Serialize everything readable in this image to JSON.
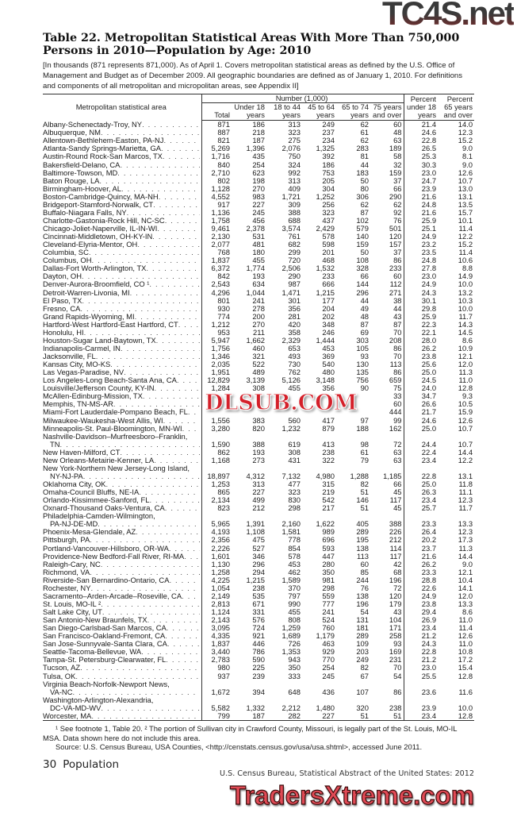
{
  "title": "Table 22. Metropolitan Statistical Areas With More Than 750,000 Persons in 2010—Population by Age: 2010",
  "headnote": "[In thousands (871 represents 871,000). As of April 1. Covers metropolitan statistical areas as defined by the U.S. Office of Management and Budget as of December 2009. All geographic boundaries are defined as of January 1, 2010. For definitions and components of all metropolitan and micropolitan areas, see Appendix II]",
  "header": {
    "stub": "Metropolitan statistical area",
    "group": "Number (1,000)",
    "cols": [
      [
        "",
        "",
        "Total"
      ],
      [
        "",
        "Under 18",
        "years"
      ],
      [
        "",
        "18 to 44",
        "years"
      ],
      [
        "",
        "45 to 64",
        "years"
      ],
      [
        "",
        "65 to 74",
        "years"
      ],
      [
        "",
        "75 years",
        "and over"
      ],
      [
        "Percent",
        "under 18",
        "years"
      ],
      [
        "Percent",
        "65 years",
        "and over"
      ]
    ]
  },
  "rows": [
    {
      "name": [
        "Albany-Schenectady-Troy, NY"
      ],
      "v": [
        "871",
        "186",
        "313",
        "249",
        "62",
        "60",
        "21.4",
        "14.0"
      ]
    },
    {
      "name": [
        "Albuquerque, NM"
      ],
      "v": [
        "887",
        "218",
        "323",
        "237",
        "61",
        "48",
        "24.6",
        "12.3"
      ]
    },
    {
      "name": [
        "Allentown-Bethlehem-Easton, PA-NJ"
      ],
      "v": [
        "821",
        "187",
        "275",
        "234",
        "62",
        "63",
        "22.8",
        "15.2"
      ]
    },
    {
      "name": [
        "Atlanta-Sandy Springs-Marietta, GA"
      ],
      "v": [
        "5,269",
        "1,396",
        "2,076",
        "1,325",
        "283",
        "189",
        "26.5",
        "9.0"
      ]
    },
    {
      "name": [
        "Austin-Round Rock-San Marcos, TX"
      ],
      "v": [
        "1,716",
        "435",
        "750",
        "392",
        "81",
        "58",
        "25.3",
        "8.1"
      ]
    },
    {
      "name": [
        "Bakersfield-Delano, CA"
      ],
      "v": [
        "840",
        "254",
        "324",
        "186",
        "44",
        "32",
        "30.3",
        "9.0"
      ]
    },
    {
      "name": [
        "Baltimore-Towson, MD"
      ],
      "v": [
        "2,710",
        "623",
        "992",
        "753",
        "183",
        "159",
        "23.0",
        "12.6"
      ]
    },
    {
      "name": [
        "Baton Rouge, LA"
      ],
      "v": [
        "802",
        "198",
        "313",
        "205",
        "50",
        "37",
        "24.7",
        "10.7"
      ]
    },
    {
      "name": [
        "Birmingham-Hoover, AL"
      ],
      "v": [
        "1,128",
        "270",
        "409",
        "304",
        "80",
        "66",
        "23.9",
        "13.0"
      ]
    },
    {
      "name": [
        "Boston-Cambridge-Quincy, MA-NH"
      ],
      "v": [
        "4,552",
        "983",
        "1,721",
        "1,252",
        "306",
        "290",
        "21.6",
        "13.1"
      ]
    },
    {
      "name": [
        "Bridgeport-Stamford-Norwalk, CT"
      ],
      "v": [
        "917",
        "227",
        "309",
        "256",
        "62",
        "62",
        "24.8",
        "13.5"
      ]
    },
    {
      "name": [
        "Buffalo-Niagara Falls, NY"
      ],
      "v": [
        "1,136",
        "245",
        "388",
        "323",
        "87",
        "92",
        "21.6",
        "15.7"
      ]
    },
    {
      "name": [
        "Charlotte-Gastonia-Rock Hill, NC-SC"
      ],
      "v": [
        "1,758",
        "456",
        "688",
        "437",
        "102",
        "76",
        "25.9",
        "10.1"
      ]
    },
    {
      "name": [
        "Chicago-Joliet-Naperville, IL-IN-WI"
      ],
      "v": [
        "9,461",
        "2,378",
        "3,574",
        "2,429",
        "579",
        "501",
        "25.1",
        "11.4"
      ]
    },
    {
      "name": [
        "Cincinnati-Middletown, OH-KY-IN"
      ],
      "v": [
        "2,130",
        "531",
        "761",
        "578",
        "140",
        "120",
        "24.9",
        "12.2"
      ]
    },
    {
      "name": [
        "Cleveland-Elyria-Mentor, OH"
      ],
      "v": [
        "2,077",
        "481",
        "682",
        "598",
        "159",
        "157",
        "23.2",
        "15.2"
      ]
    },
    {
      "name": [
        "Columbia, SC"
      ],
      "v": [
        "768",
        "180",
        "299",
        "201",
        "50",
        "37",
        "23.5",
        "11.4"
      ]
    },
    {
      "name": [
        "Columbus, OH"
      ],
      "v": [
        "1,837",
        "455",
        "720",
        "468",
        "108",
        "86",
        "24.8",
        "10.6"
      ]
    },
    {
      "name": [
        "Dallas-Fort Worth-Arlington, TX"
      ],
      "v": [
        "6,372",
        "1,774",
        "2,506",
        "1,532",
        "328",
        "233",
        "27.8",
        "8.8"
      ]
    },
    {
      "name": [
        "Dayton, OH"
      ],
      "v": [
        "842",
        "193",
        "290",
        "233",
        "66",
        "60",
        "23.0",
        "14.9"
      ]
    },
    {
      "name": [
        "Denver-Aurora-Broomfield, CO ¹"
      ],
      "v": [
        "2,543",
        "634",
        "987",
        "666",
        "144",
        "112",
        "24.9",
        "10.0"
      ]
    },
    {
      "name": [
        "Detroit-Warren-Livonia, MI"
      ],
      "v": [
        "4,296",
        "1,044",
        "1,471",
        "1,215",
        "296",
        "271",
        "24.3",
        "13.2"
      ]
    },
    {
      "name": [
        "El Paso, TX"
      ],
      "v": [
        "801",
        "241",
        "301",
        "177",
        "44",
        "38",
        "30.1",
        "10.3"
      ]
    },
    {
      "name": [
        "Fresno, CA"
      ],
      "v": [
        "930",
        "278",
        "356",
        "204",
        "49",
        "44",
        "29.8",
        "10.0"
      ]
    },
    {
      "name": [
        "Grand Rapids-Wyoming, MI"
      ],
      "v": [
        "774",
        "200",
        "281",
        "202",
        "48",
        "43",
        "25.9",
        "11.7"
      ]
    },
    {
      "name": [
        "Hartford-West Hartford-East Hartford, CT"
      ],
      "v": [
        "1,212",
        "270",
        "420",
        "348",
        "87",
        "87",
        "22.3",
        "14.3"
      ]
    },
    {
      "name": [
        "Honolulu, HI"
      ],
      "v": [
        "953",
        "211",
        "358",
        "246",
        "69",
        "70",
        "22.1",
        "14.5"
      ]
    },
    {
      "name": [
        "Houston-Sugar Land-Baytown, TX"
      ],
      "v": [
        "5,947",
        "1,662",
        "2,329",
        "1,444",
        "303",
        "208",
        "28.0",
        "8.6"
      ]
    },
    {
      "name": [
        "Indianapolis-Carmel, IN"
      ],
      "v": [
        "1,756",
        "460",
        "653",
        "453",
        "105",
        "86",
        "26.2",
        "10.9"
      ]
    },
    {
      "name": [
        "Jacksonville, FL"
      ],
      "v": [
        "1,346",
        "321",
        "493",
        "369",
        "93",
        "70",
        "23.8",
        "12.1"
      ]
    },
    {
      "name": [
        "Kansas City, MO-KS"
      ],
      "v": [
        "2,035",
        "522",
        "730",
        "540",
        "130",
        "113",
        "25.6",
        "12.0"
      ]
    },
    {
      "name": [
        "Las Vegas-Paradise, NV"
      ],
      "v": [
        "1,951",
        "489",
        "762",
        "480",
        "135",
        "86",
        "25.0",
        "11.3"
      ]
    },
    {
      "name": [
        "Los Angeles-Long Beach-Santa Ana, CA"
      ],
      "v": [
        "12,829",
        "3,139",
        "5,126",
        "3,148",
        "756",
        "659",
        "24.5",
        "11.0"
      ]
    },
    {
      "name": [
        "Louisville/Jefferson County, KY-IN"
      ],
      "v": [
        "1,284",
        "308",
        "455",
        "356",
        "90",
        "75",
        "24.0",
        "12.8"
      ]
    },
    {
      "name": [
        "McAllen-Edinburg-Mission, TX"
      ],
      "v": [
        "",
        "",
        "",
        "",
        "",
        "33",
        "34.7",
        "9.3"
      ]
    },
    {
      "name": [
        "Memphis, TN-MS-AR"
      ],
      "v": [
        "",
        "",
        "",
        "",
        "",
        "60",
        "26.6",
        "10.5"
      ]
    },
    {
      "name": [
        "Miami-Fort Lauderdale-Pompano Beach, FL"
      ],
      "v": [
        "",
        "",
        "",
        "",
        "",
        "444",
        "21.7",
        "15.9"
      ]
    },
    {
      "name": [
        "Milwaukee-Waukesha-West Allis, WI"
      ],
      "v": [
        "1,556",
        "383",
        "560",
        "417",
        "97",
        "99",
        "24.6",
        "12.6"
      ]
    },
    {
      "name": [
        "Minneapolis-St. Paul-Bloomington, MN-WI"
      ],
      "v": [
        "3,280",
        "820",
        "1,232",
        "879",
        "188",
        "162",
        "25.0",
        "10.7"
      ]
    },
    {
      "name": [
        "Nashville-Davidson–Murfreesboro–Franklin,",
        "TN"
      ],
      "v": [
        "1,590",
        "388",
        "619",
        "413",
        "98",
        "72",
        "24.4",
        "10.7"
      ]
    },
    {
      "name": [
        "New Haven-Milford, CT"
      ],
      "v": [
        "862",
        "193",
        "308",
        "238",
        "61",
        "63",
        "22.4",
        "14.4"
      ]
    },
    {
      "name": [
        "New Orleans-Metairie-Kenner, LA"
      ],
      "v": [
        "1,168",
        "273",
        "431",
        "322",
        "79",
        "63",
        "23.4",
        "12.2"
      ]
    },
    {
      "name": [
        "New York-Northern New Jersey-Long Island,",
        "NY-NJ-PA"
      ],
      "v": [
        "18,897",
        "4,312",
        "7,132",
        "4,980",
        "1,288",
        "1,185",
        "22.8",
        "13.1"
      ]
    },
    {
      "name": [
        "Oklahoma City, OK"
      ],
      "v": [
        "1,253",
        "313",
        "477",
        "315",
        "82",
        "66",
        "25.0",
        "11.8"
      ]
    },
    {
      "name": [
        "Omaha-Council Bluffs, NE-IA"
      ],
      "v": [
        "865",
        "227",
        "323",
        "219",
        "51",
        "45",
        "26.3",
        "11.1"
      ]
    },
    {
      "name": [
        "Orlando-Kissimmee-Sanford,  FL"
      ],
      "v": [
        "2,134",
        "499",
        "830",
        "542",
        "146",
        "117",
        "23.4",
        "12.3"
      ]
    },
    {
      "name": [
        "Oxnard-Thousand Oaks-Ventura, CA"
      ],
      "v": [
        "823",
        "212",
        "298",
        "217",
        "51",
        "45",
        "25.7",
        "11.7"
      ]
    },
    {
      "name": [
        "Philadelphia-Camden-Wilmington,",
        "PA-NJ-DE-MD"
      ],
      "v": [
        "5,965",
        "1,391",
        "2,160",
        "1,622",
        "405",
        "388",
        "23.3",
        "13.3"
      ]
    },
    {
      "name": [
        "Phoenix-Mesa-Glendale, AZ"
      ],
      "v": [
        "4,193",
        "1,108",
        "1,581",
        "989",
        "289",
        "226",
        "26.4",
        "12.3"
      ]
    },
    {
      "name": [
        "Pittsburgh, PA"
      ],
      "v": [
        "2,356",
        "475",
        "778",
        "696",
        "195",
        "212",
        "20.2",
        "17.3"
      ]
    },
    {
      "name": [
        "Portland-Vancouver-Hillsboro, OR-WA"
      ],
      "v": [
        "2,226",
        "527",
        "854",
        "593",
        "138",
        "114",
        "23.7",
        "11.3"
      ]
    },
    {
      "name": [
        "Providence-New Bedford-Fall River, RI-MA"
      ],
      "v": [
        "1,601",
        "346",
        "578",
        "447",
        "113",
        "117",
        "21.6",
        "14.4"
      ]
    },
    {
      "name": [
        "Raleigh-Cary, NC"
      ],
      "v": [
        "1,130",
        "296",
        "453",
        "280",
        "60",
        "42",
        "26.2",
        "9.0"
      ]
    },
    {
      "name": [
        "Richmond, VA"
      ],
      "v": [
        "1,258",
        "294",
        "462",
        "350",
        "85",
        "68",
        "23.3",
        "12.1"
      ]
    },
    {
      "name": [
        "Riverside-San Bernardino-Ontario, CA"
      ],
      "v": [
        "4,225",
        "1,215",
        "1,589",
        "981",
        "244",
        "196",
        "28.8",
        "10.4"
      ]
    },
    {
      "name": [
        "Rochester, NY"
      ],
      "v": [
        "1,054",
        "238",
        "370",
        "298",
        "76",
        "72",
        "22.6",
        "14.1"
      ]
    },
    {
      "name": [
        "Sacramento–Arden-Arcade–Roseville, CA"
      ],
      "v": [
        "2,149",
        "535",
        "797",
        "559",
        "138",
        "120",
        "24.9",
        "12.0"
      ]
    },
    {
      "name": [
        "St. Louis, MO-IL ²"
      ],
      "v": [
        "2,813",
        "671",
        "990",
        "777",
        "196",
        "179",
        "23.8",
        "13.3"
      ]
    },
    {
      "name": [
        "Salt Lake City, UT"
      ],
      "v": [
        "1,124",
        "331",
        "455",
        "241",
        "54",
        "43",
        "29.4",
        "8.6"
      ]
    },
    {
      "name": [
        "San Antonio-New Braunfels, TX"
      ],
      "v": [
        "2,143",
        "576",
        "808",
        "524",
        "131",
        "104",
        "26.9",
        "11.0"
      ]
    },
    {
      "name": [
        "San Diego-Carlsbad-San Marcos, CA"
      ],
      "v": [
        "3,095",
        "724",
        "1,259",
        "760",
        "181",
        "171",
        "23.4",
        "11.4"
      ]
    },
    {
      "name": [
        "San Francisco-Oakland-Fremont, CA"
      ],
      "v": [
        "4,335",
        "921",
        "1,689",
        "1,179",
        "289",
        "258",
        "21.2",
        "12.6"
      ]
    },
    {
      "name": [
        "San Jose-Sunnyvale-Santa Clara, CA"
      ],
      "v": [
        "1,837",
        "446",
        "726",
        "463",
        "109",
        "93",
        "24.3",
        "11.0"
      ]
    },
    {
      "name": [
        "Seattle-Tacoma-Bellevue, WA"
      ],
      "v": [
        "3,440",
        "786",
        "1,353",
        "929",
        "203",
        "169",
        "22.8",
        "10.8"
      ]
    },
    {
      "name": [
        "Tampa-St. Petersburg-Clearwater, FL"
      ],
      "v": [
        "2,783",
        "590",
        "943",
        "770",
        "249",
        "231",
        "21.2",
        "17.2"
      ]
    },
    {
      "name": [
        "Tucson, AZ"
      ],
      "v": [
        "980",
        "225",
        "350",
        "254",
        "82",
        "70",
        "23.0",
        "15.4"
      ]
    },
    {
      "name": [
        "Tulsa, OK"
      ],
      "v": [
        "937",
        "239",
        "333",
        "245",
        "67",
        "54",
        "25.5",
        "12.8"
      ]
    },
    {
      "name": [
        "Virginia Beach-Norfolk-Newport News,",
        "VA-NC"
      ],
      "v": [
        "1,672",
        "394",
        "648",
        "436",
        "107",
        "86",
        "23.6",
        "11.6"
      ]
    },
    {
      "name": [
        "Washington-Arlington-Alexandria,",
        "DC-VA-MD-WV"
      ],
      "v": [
        "5,582",
        "1,332",
        "2,212",
        "1,480",
        "320",
        "238",
        "23.9",
        "10.0"
      ]
    },
    {
      "name": [
        "Worcester, MA"
      ],
      "v": [
        "799",
        "187",
        "282",
        "227",
        "51",
        "51",
        "23.4",
        "12.8"
      ]
    }
  ],
  "footnotes": {
    "line1": "¹ See footnote 1, Table 20. ² The portion of Sullivan city in Crawford County, Missouri, is legally part of the St. Louis, MO-IL MSA. Data shown here do not include this area.",
    "source": "Source: U.S. Census Bureau, USA Counties, <http://censtats.census.gov/usa/usa.shtml>, accessed June 2011."
  },
  "page": {
    "number": "30",
    "section": "Population",
    "publication": "U.S. Census Bureau, Statistical Abstract of the United States: 2012"
  },
  "watermarks": {
    "top": "TC4S.net",
    "middle": "DLSUB.COM",
    "bottom": "TradersXtreme.com"
  },
  "colors": {
    "text": "#1a1a1a",
    "rule": "#333333",
    "dlsub": "#d4202a",
    "traders": "#e04a55"
  }
}
